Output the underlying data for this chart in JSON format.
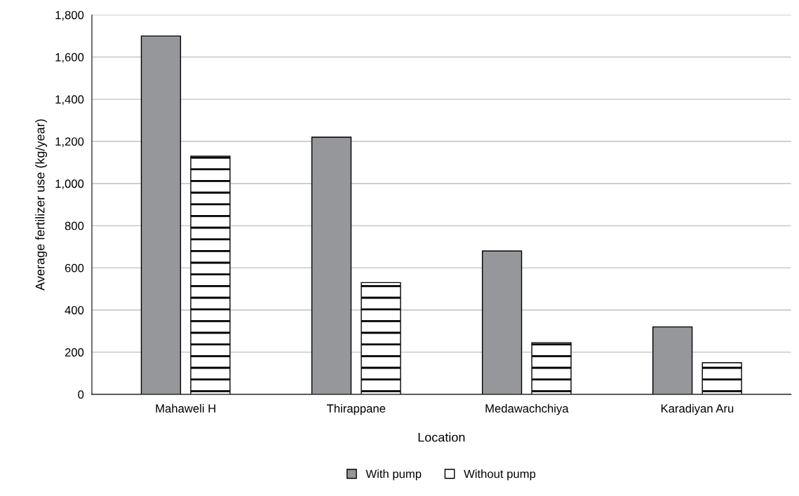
{
  "chart_data": {
    "type": "bar",
    "xlabel": "Location",
    "ylabel": "Average fertilizer use (kg/year)",
    "categories": [
      "Mahaweli H",
      "Thirappane",
      "Medawachchiya",
      "Karadiyan Aru"
    ],
    "series": [
      {
        "name": "With pump",
        "color": "#96979b",
        "values": [
          1700,
          1220,
          680,
          320
        ]
      },
      {
        "name": "Without pump",
        "color": "#ffffff",
        "values": [
          1130,
          530,
          245,
          150
        ]
      }
    ],
    "ylim": [
      0,
      1800
    ],
    "yticks": [
      {
        "value": 0,
        "label": "0"
      },
      {
        "value": 200,
        "label": "200"
      },
      {
        "value": 400,
        "label": "400"
      },
      {
        "value": 600,
        "label": "600"
      },
      {
        "value": 800,
        "label": "800"
      },
      {
        "value": 1000,
        "label": "1,000"
      },
      {
        "value": 1200,
        "label": "1,200"
      },
      {
        "value": 1400,
        "label": "1,400"
      },
      {
        "value": 1600,
        "label": "1,600"
      },
      {
        "value": 1800,
        "label": "1,800"
      }
    ],
    "grid": "y",
    "legend": "bottom"
  }
}
